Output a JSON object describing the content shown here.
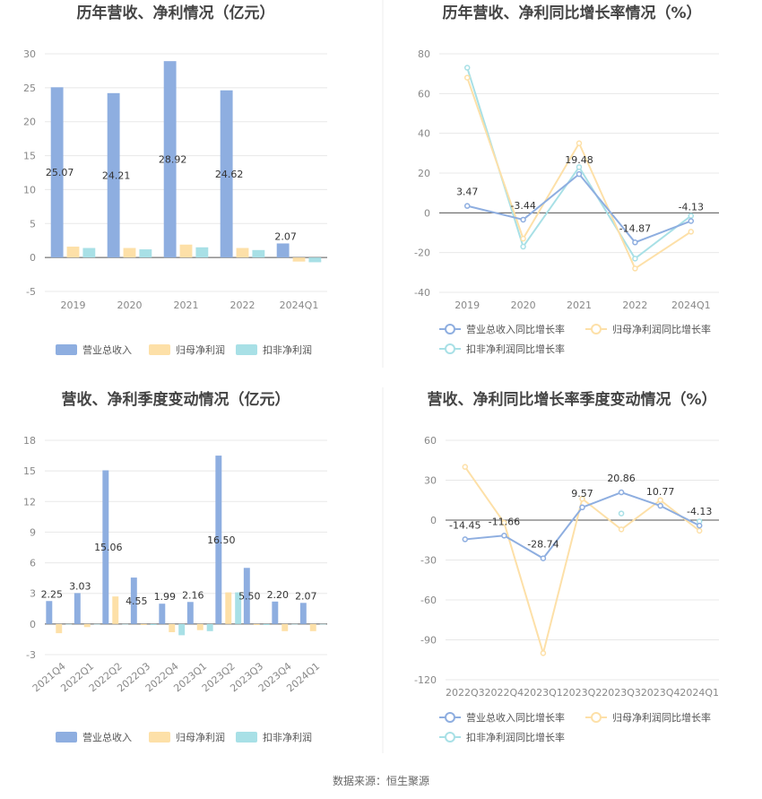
{
  "source_label": "数据来源：恒生聚源",
  "colors": {
    "revenue": "#8eaee0",
    "net_profit": "#fde0a8",
    "deducted_profit": "#a8e0e6",
    "grid": "#e8e8e8",
    "axis": "#555555"
  },
  "chart_data": [
    {
      "type": "bar",
      "title": "历年营收、净利情况（亿元）",
      "categories": [
        "2019",
        "2020",
        "2021",
        "2022",
        "2024Q1"
      ],
      "ylim": [
        -5,
        30
      ],
      "yticks": [
        -5,
        0,
        5,
        10,
        15,
        20,
        25,
        30
      ],
      "series": [
        {
          "name": "营业总收入",
          "color": "#8eaee0",
          "values": [
            25.07,
            24.21,
            28.92,
            24.62,
            2.07
          ],
          "labels": [
            "25.07",
            "24.21",
            "28.92",
            "24.62",
            "2.07"
          ]
        },
        {
          "name": "归母净利润",
          "color": "#fde0a8",
          "values": [
            1.6,
            1.4,
            1.9,
            1.4,
            -0.6
          ],
          "labels": []
        },
        {
          "name": "扣非净利润",
          "color": "#a8e0e6",
          "values": [
            1.4,
            1.2,
            1.5,
            1.1,
            -0.7
          ],
          "labels": []
        }
      ],
      "legend": "bottom"
    },
    {
      "type": "line",
      "title": "历年营收、净利同比增长率情况（%）",
      "categories": [
        "2019",
        "2020",
        "2021",
        "2022",
        "2024Q1"
      ],
      "ylim": [
        -40,
        80
      ],
      "yticks": [
        -40,
        -20,
        0,
        20,
        40,
        60,
        80
      ],
      "series": [
        {
          "name": "营业总收入同比增长率",
          "color": "#8eaee0",
          "values": [
            3.47,
            -3.44,
            19.48,
            -14.87,
            -4.13
          ],
          "labels": [
            "3.47",
            "-3.44",
            "19.48",
            "-14.87",
            "-4.13"
          ]
        },
        {
          "name": "归母净利润同比增长率",
          "color": "#fde0a8",
          "values": [
            68,
            -13,
            35,
            -28,
            -9.5
          ],
          "labels": []
        },
        {
          "name": "扣非净利润同比增长率",
          "color": "#a8e0e6",
          "values": [
            73,
            -17,
            23,
            -23,
            -1.5
          ],
          "labels": []
        }
      ],
      "legend": "bottom"
    },
    {
      "type": "bar",
      "title": "营收、净利季度变动情况（亿元）",
      "categories": [
        "2021Q4",
        "2022Q1",
        "2022Q2",
        "2022Q3",
        "2022Q4",
        "2023Q1",
        "2023Q2",
        "2023Q3",
        "2023Q4",
        "2024Q1"
      ],
      "ylim": [
        -3,
        18
      ],
      "yticks": [
        -3,
        0,
        3,
        6,
        9,
        12,
        15,
        18
      ],
      "series": [
        {
          "name": "营业总收入",
          "color": "#8eaee0",
          "values": [
            2.25,
            3.03,
            15.06,
            4.55,
            1.99,
            2.16,
            16.5,
            5.5,
            2.2,
            2.07
          ],
          "labels": [
            "2.25",
            "3.03",
            "15.06",
            "4.55",
            "1.99",
            "2.16",
            "16.50",
            "5.50",
            "2.20",
            "2.07"
          ]
        },
        {
          "name": "归母净利润",
          "color": "#fde0a8",
          "values": [
            -0.9,
            -0.3,
            2.7,
            -0.1,
            -0.8,
            -0.6,
            3.1,
            -0.1,
            -0.7,
            -0.7
          ],
          "labels": []
        },
        {
          "name": "扣非净利润",
          "color": "#a8e0e6",
          "values": [
            0,
            0,
            0,
            -0.1,
            -1.1,
            -0.7,
            3.1,
            -0.1,
            0,
            0
          ],
          "labels": []
        }
      ],
      "legend": "bottom"
    },
    {
      "type": "line",
      "title": "营收、净利同比增长率季度变动情况（%）",
      "categories": [
        "2022Q3",
        "2022Q4",
        "2023Q1",
        "2023Q2",
        "2023Q3",
        "2023Q4",
        "2024Q1"
      ],
      "ylim": [
        -120,
        60
      ],
      "yticks": [
        -120,
        -90,
        -60,
        -30,
        0,
        30,
        60
      ],
      "series": [
        {
          "name": "营业总收入同比增长率",
          "color": "#8eaee0",
          "values": [
            -14.45,
            -11.66,
            -28.74,
            9.57,
            20.86,
            10.77,
            -4.13
          ],
          "labels": [
            "-14.45",
            "-11.66",
            "-28.74",
            "9.57",
            "20.86",
            "10.77",
            "-4.13"
          ]
        },
        {
          "name": "归母净利润同比增长率",
          "color": "#fde0a8",
          "values": [
            40,
            -2,
            -100,
            16,
            -7,
            15,
            -8
          ],
          "labels": []
        },
        {
          "name": "扣非净利润同比增长率",
          "color": "#a8e0e6",
          "values": [
            null,
            null,
            null,
            null,
            5,
            null,
            -1
          ],
          "labels": []
        }
      ],
      "legend": "bottom"
    }
  ]
}
